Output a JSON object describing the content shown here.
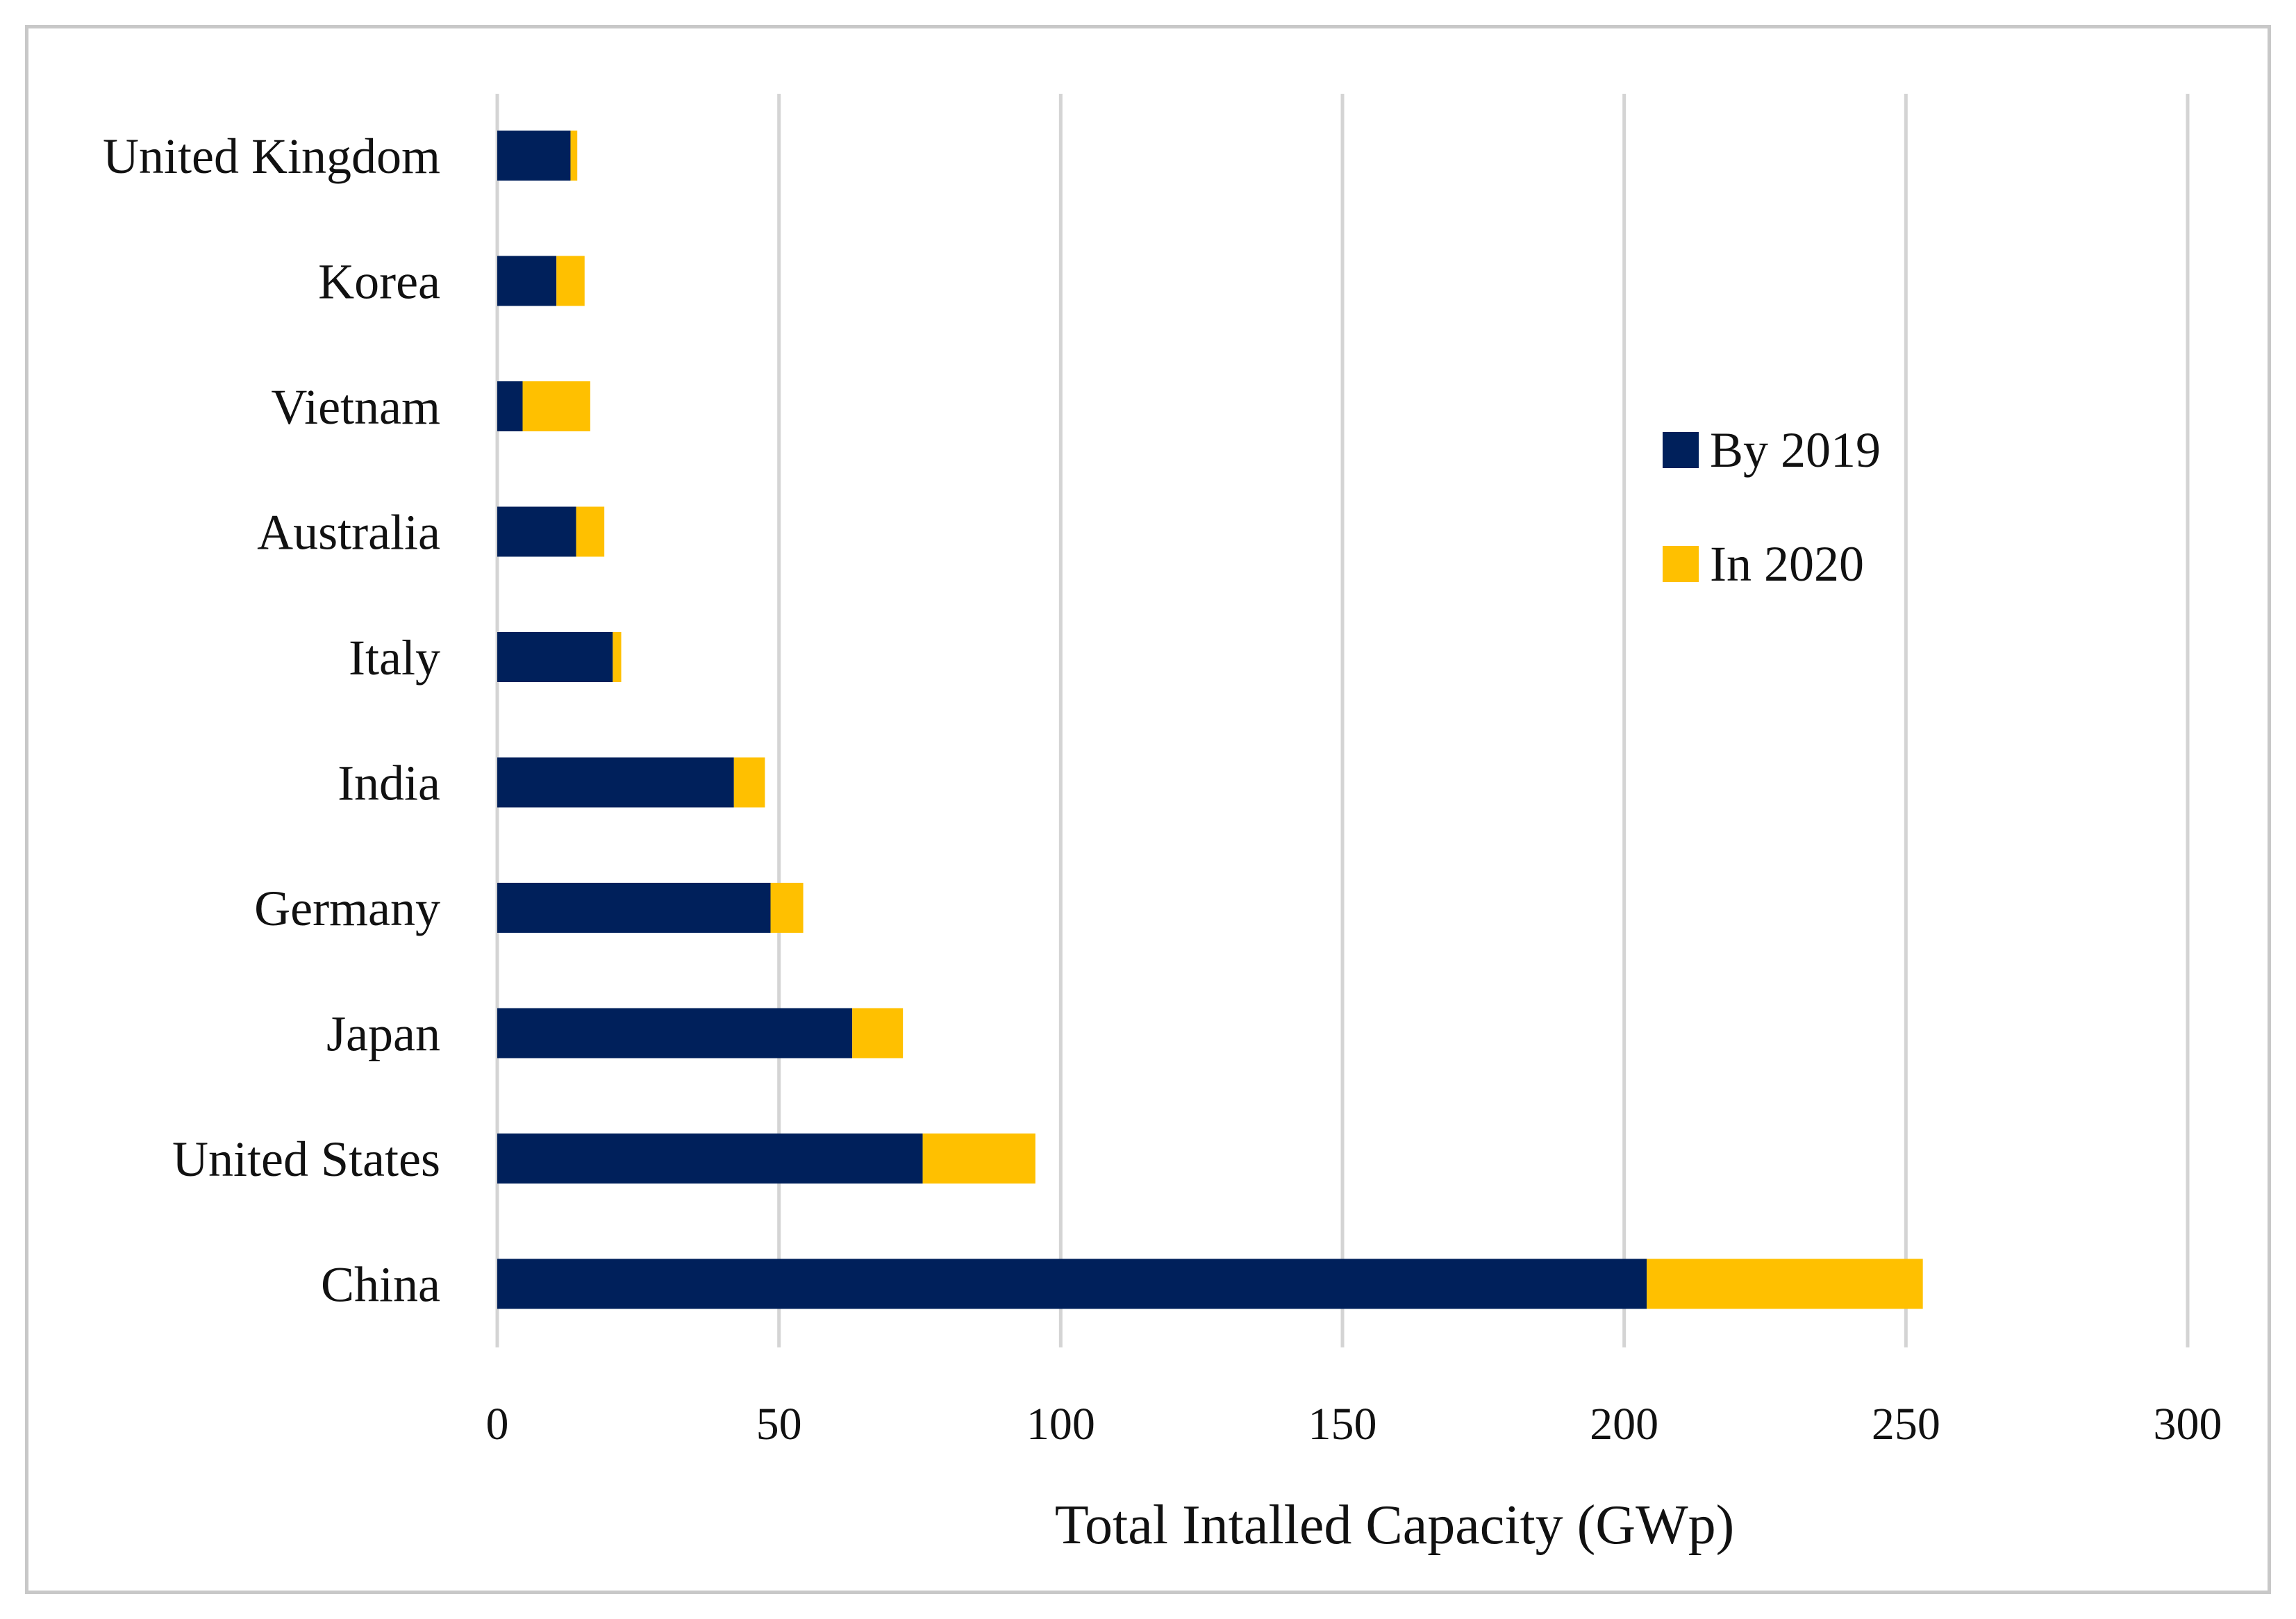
{
  "chart_data": {
    "type": "bar",
    "orientation": "horizontal",
    "stacked": true,
    "title": "",
    "xlabel": "Total Intalled Capacity (GWp)",
    "ylabel": "",
    "xlim": [
      0,
      300
    ],
    "xticks": [
      0,
      50,
      100,
      150,
      200,
      250,
      300
    ],
    "xtick_labels": [
      "0",
      "50",
      "100",
      "150",
      "200",
      "250",
      "300"
    ],
    "grid": "vertical",
    "legend_position": "right",
    "categories": [
      "United Kingdom",
      "Korea",
      "Vietnam",
      "Australia",
      "Italy",
      "India",
      "Germany",
      "Japan",
      "United States",
      "China"
    ],
    "series": [
      {
        "name": "By 2019",
        "color": "#00205b",
        "values": [
          13,
          10.5,
          4.5,
          14,
          20.5,
          42,
          48.5,
          63,
          75.5,
          204
        ]
      },
      {
        "name": "In 2020",
        "color": "#ffc000",
        "values": [
          1.2,
          5,
          12,
          5,
          1.5,
          5.5,
          5.8,
          9,
          20,
          49
        ]
      }
    ]
  }
}
